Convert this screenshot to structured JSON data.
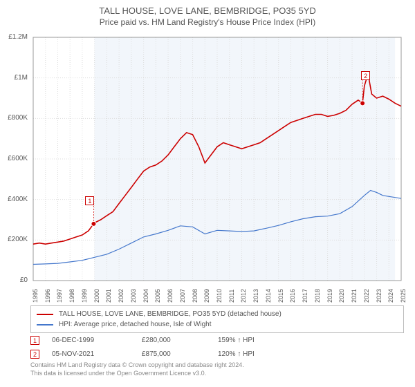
{
  "title": "TALL HOUSE, LOVE LANE, BEMBRIDGE, PO35 5YD",
  "subtitle": "Price paid vs. HM Land Registry's House Price Index (HPI)",
  "chart": {
    "type": "line",
    "background_color": "#ffffff",
    "plot_band_color": "#f2f6fb",
    "grid_color": "#dddddd",
    "border_color": "#999999",
    "x_min": 1995,
    "x_max": 2025,
    "x_labels": [
      "1995",
      "1996",
      "1997",
      "1998",
      "1999",
      "2000",
      "2001",
      "2002",
      "2003",
      "2004",
      "2005",
      "2006",
      "2007",
      "2008",
      "2009",
      "2010",
      "2011",
      "2012",
      "2013",
      "2014",
      "2015",
      "2016",
      "2017",
      "2018",
      "2019",
      "2020",
      "2021",
      "2022",
      "2023",
      "2024",
      "2025"
    ],
    "y_min": 0,
    "y_max": 1200000,
    "y_tick_step": 200000,
    "y_tick_labels": [
      "£0",
      "£200K",
      "£400K",
      "£600K",
      "£800K",
      "£1M",
      "£1.2M"
    ],
    "series": [
      {
        "name": "TALL HOUSE, LOVE LANE, BEMBRIDGE, PO35 5YD (detached house)",
        "color": "#cc0000",
        "line_width": 1.6,
        "data": [
          [
            1995.0,
            180000
          ],
          [
            1995.5,
            185000
          ],
          [
            1996.0,
            180000
          ],
          [
            1996.5,
            185000
          ],
          [
            1997.0,
            190000
          ],
          [
            1997.5,
            195000
          ],
          [
            1998.0,
            205000
          ],
          [
            1998.5,
            215000
          ],
          [
            1999.0,
            225000
          ],
          [
            1999.5,
            245000
          ],
          [
            1999.93,
            280000
          ],
          [
            2000.0,
            285000
          ],
          [
            2000.5,
            300000
          ],
          [
            2001.0,
            320000
          ],
          [
            2001.5,
            340000
          ],
          [
            2002.0,
            380000
          ],
          [
            2002.5,
            420000
          ],
          [
            2003.0,
            460000
          ],
          [
            2003.5,
            500000
          ],
          [
            2004.0,
            540000
          ],
          [
            2004.5,
            560000
          ],
          [
            2005.0,
            570000
          ],
          [
            2005.5,
            590000
          ],
          [
            2006.0,
            620000
          ],
          [
            2006.5,
            660000
          ],
          [
            2007.0,
            700000
          ],
          [
            2007.5,
            730000
          ],
          [
            2008.0,
            720000
          ],
          [
            2008.5,
            660000
          ],
          [
            2009.0,
            580000
          ],
          [
            2009.5,
            620000
          ],
          [
            2010.0,
            660000
          ],
          [
            2010.5,
            680000
          ],
          [
            2011.0,
            670000
          ],
          [
            2011.5,
            660000
          ],
          [
            2012.0,
            650000
          ],
          [
            2012.5,
            660000
          ],
          [
            2013.0,
            670000
          ],
          [
            2013.5,
            680000
          ],
          [
            2014.0,
            700000
          ],
          [
            2014.5,
            720000
          ],
          [
            2015.0,
            740000
          ],
          [
            2015.5,
            760000
          ],
          [
            2016.0,
            780000
          ],
          [
            2016.5,
            790000
          ],
          [
            2017.0,
            800000
          ],
          [
            2017.5,
            810000
          ],
          [
            2018.0,
            820000
          ],
          [
            2018.5,
            820000
          ],
          [
            2019.0,
            810000
          ],
          [
            2019.5,
            815000
          ],
          [
            2020.0,
            825000
          ],
          [
            2020.5,
            840000
          ],
          [
            2021.0,
            870000
          ],
          [
            2021.5,
            890000
          ],
          [
            2021.85,
            875000
          ],
          [
            2022.0,
            960000
          ],
          [
            2022.3,
            1020000
          ],
          [
            2022.6,
            920000
          ],
          [
            2023.0,
            900000
          ],
          [
            2023.5,
            910000
          ],
          [
            2024.0,
            895000
          ],
          [
            2024.5,
            875000
          ],
          [
            2025.0,
            860000
          ]
        ],
        "markers": [
          {
            "x": 1999.93,
            "y": 280000,
            "dot_color": "#cc0000",
            "label": "1",
            "label_box_color": "#cc0000",
            "label_dx": -12,
            "label_dy": -40
          },
          {
            "x": 2021.85,
            "y": 875000,
            "dot_color": "#cc0000",
            "label": "2",
            "label_box_color": "#cc0000",
            "label_dx": -2,
            "label_dy": -46
          }
        ]
      },
      {
        "name": "HPI: Average price, detached house, Isle of Wight",
        "color": "#4477cc",
        "line_width": 1.2,
        "data": [
          [
            1995.0,
            80000
          ],
          [
            1996.0,
            82000
          ],
          [
            1997.0,
            85000
          ],
          [
            1998.0,
            92000
          ],
          [
            1999.0,
            100000
          ],
          [
            2000.0,
            115000
          ],
          [
            2001.0,
            130000
          ],
          [
            2002.0,
            155000
          ],
          [
            2003.0,
            185000
          ],
          [
            2004.0,
            215000
          ],
          [
            2005.0,
            230000
          ],
          [
            2006.0,
            248000
          ],
          [
            2007.0,
            270000
          ],
          [
            2008.0,
            265000
          ],
          [
            2009.0,
            230000
          ],
          [
            2010.0,
            248000
          ],
          [
            2011.0,
            245000
          ],
          [
            2012.0,
            242000
          ],
          [
            2013.0,
            245000
          ],
          [
            2014.0,
            258000
          ],
          [
            2015.0,
            272000
          ],
          [
            2016.0,
            290000
          ],
          [
            2017.0,
            305000
          ],
          [
            2018.0,
            315000
          ],
          [
            2019.0,
            318000
          ],
          [
            2020.0,
            330000
          ],
          [
            2021.0,
            365000
          ],
          [
            2022.0,
            420000
          ],
          [
            2022.5,
            445000
          ],
          [
            2023.0,
            435000
          ],
          [
            2023.5,
            420000
          ],
          [
            2024.0,
            415000
          ],
          [
            2024.5,
            410000
          ],
          [
            2025.0,
            405000
          ]
        ],
        "markers": []
      }
    ],
    "sale_events": [
      {
        "label": "1",
        "date": "06-DEC-1999",
        "price": "£280,000",
        "vs_hpi": "159% ↑ HPI",
        "box_color": "#cc0000"
      },
      {
        "label": "2",
        "date": "05-NOV-2021",
        "price": "£875,000",
        "vs_hpi": "120% ↑ HPI",
        "box_color": "#cc0000"
      }
    ],
    "legend_border": "#bbbbbb",
    "label_fontsize": 10,
    "tick_fontsize": 9
  },
  "footer_line1": "Contains HM Land Registry data © Crown copyright and database right 2024.",
  "footer_line2": "This data is licensed under the Open Government Licence v3.0."
}
